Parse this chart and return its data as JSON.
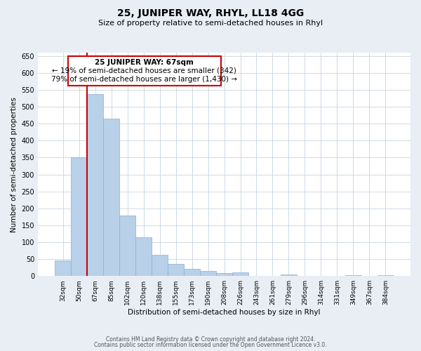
{
  "title": "25, JUNIPER WAY, RHYL, LL18 4GG",
  "subtitle": "Size of property relative to semi-detached houses in Rhyl",
  "xlabel": "Distribution of semi-detached houses by size in Rhyl",
  "ylabel": "Number of semi-detached properties",
  "bin_labels": [
    "32sqm",
    "50sqm",
    "67sqm",
    "85sqm",
    "102sqm",
    "120sqm",
    "138sqm",
    "155sqm",
    "173sqm",
    "190sqm",
    "208sqm",
    "226sqm",
    "243sqm",
    "261sqm",
    "279sqm",
    "296sqm",
    "314sqm",
    "331sqm",
    "349sqm",
    "367sqm",
    "384sqm"
  ],
  "bar_values": [
    47,
    350,
    537,
    465,
    178,
    115,
    62,
    35,
    22,
    15,
    8,
    10,
    0,
    0,
    5,
    0,
    0,
    0,
    2,
    0,
    2
  ],
  "bar_color": "#b8d0e8",
  "bar_edge_color": "#8ab0d0",
  "highlight_bar_index": 2,
  "highlight_line_color": "#cc0000",
  "ylim": [
    0,
    660
  ],
  "yticks": [
    0,
    50,
    100,
    150,
    200,
    250,
    300,
    350,
    400,
    450,
    500,
    550,
    600,
    650
  ],
  "annotation_title": "25 JUNIPER WAY: 67sqm",
  "annotation_line1": "← 19% of semi-detached houses are smaller (342)",
  "annotation_line2": "79% of semi-detached houses are larger (1,430) →",
  "annotation_box_color": "#ffffff",
  "annotation_box_edge": "#cc0000",
  "footer_line1": "Contains HM Land Registry data © Crown copyright and database right 2024.",
  "footer_line2": "Contains public sector information licensed under the Open Government Licence v3.0.",
  "background_color": "#e8eef4",
  "plot_background_color": "#ffffff",
  "grid_color": "#c8d4e0"
}
